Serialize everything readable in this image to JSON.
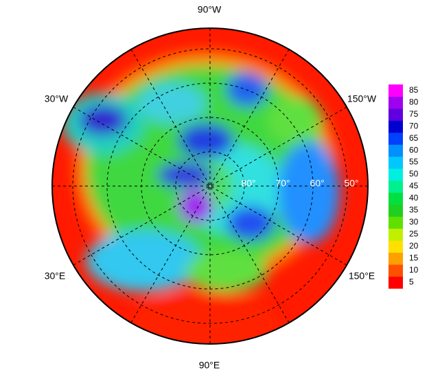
{
  "map": {
    "longitude_labels": [
      "90°W",
      "30°W",
      "150°W",
      "30°E",
      "150°E",
      "90°E"
    ],
    "latitude_labels": [
      "80°",
      "70°",
      "60°",
      "50°"
    ]
  },
  "colorbar": {
    "ticks": [
      5,
      10,
      15,
      20,
      25,
      30,
      35,
      40,
      45,
      50,
      55,
      60,
      65,
      70,
      75,
      80,
      85
    ],
    "colors": [
      "#ff0000",
      "#ff5000",
      "#ffa000",
      "#ffe000",
      "#c0f000",
      "#60e000",
      "#20d020",
      "#00e040",
      "#00f090",
      "#00f0e0",
      "#00c8ff",
      "#0090ff",
      "#0040ff",
      "#0000d0",
      "#6000e0",
      "#a000f0",
      "#ff00ff"
    ]
  }
}
